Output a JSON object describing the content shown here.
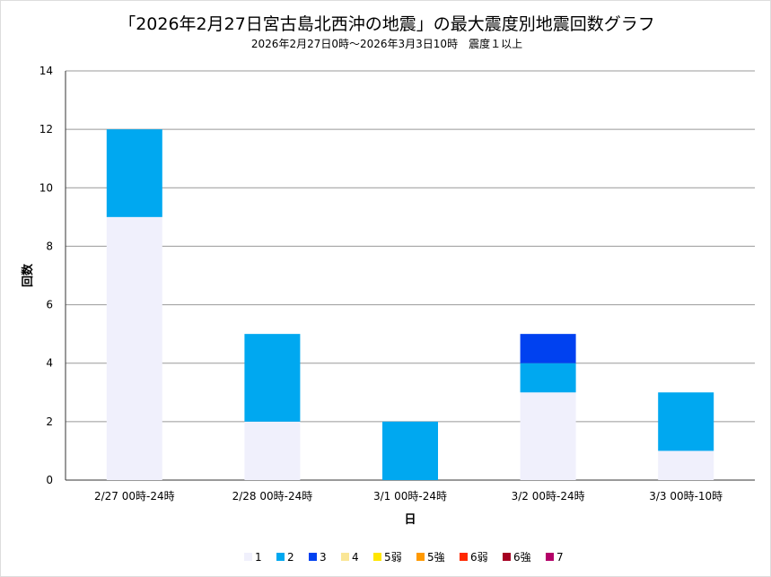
{
  "chart_data": {
    "type": "bar",
    "stacked": true,
    "title": "「2026年2月27日宮古島北西沖の地震」の最大震度別地震回数グラフ",
    "subtitle": "2026年2月27日0時～2026年3月3日10時　震度１以上",
    "xlabel": "日",
    "ylabel": "回数",
    "ylim": [
      0,
      14
    ],
    "yticks": [
      0,
      2,
      4,
      6,
      8,
      10,
      12,
      14
    ],
    "grid": true,
    "legend_position": "bottom",
    "categories": [
      "2/27 00時-24時",
      "2/28 00時-24時",
      "3/1 00時-24時",
      "3/2 00時-24時",
      "3/3 00時-10時"
    ],
    "series": [
      {
        "name": "1",
        "color": "#f0f0fc",
        "values": [
          9,
          2,
          0,
          3,
          1
        ]
      },
      {
        "name": "2",
        "color": "#00a8f0",
        "values": [
          3,
          3,
          2,
          1,
          2
        ]
      },
      {
        "name": "3",
        "color": "#0041f0",
        "values": [
          0,
          0,
          0,
          1,
          0
        ]
      },
      {
        "name": "4",
        "color": "#fae696",
        "values": [
          0,
          0,
          0,
          0,
          0
        ]
      },
      {
        "name": "5弱",
        "color": "#ffe600",
        "values": [
          0,
          0,
          0,
          0,
          0
        ]
      },
      {
        "name": "5強",
        "color": "#ff9900",
        "values": [
          0,
          0,
          0,
          0,
          0
        ]
      },
      {
        "name": "6弱",
        "color": "#ff2800",
        "values": [
          0,
          0,
          0,
          0,
          0
        ]
      },
      {
        "name": "6強",
        "color": "#a50021",
        "values": [
          0,
          0,
          0,
          0,
          0
        ]
      },
      {
        "name": "7",
        "color": "#b40068",
        "values": [
          0,
          0,
          0,
          0,
          0
        ]
      }
    ]
  }
}
